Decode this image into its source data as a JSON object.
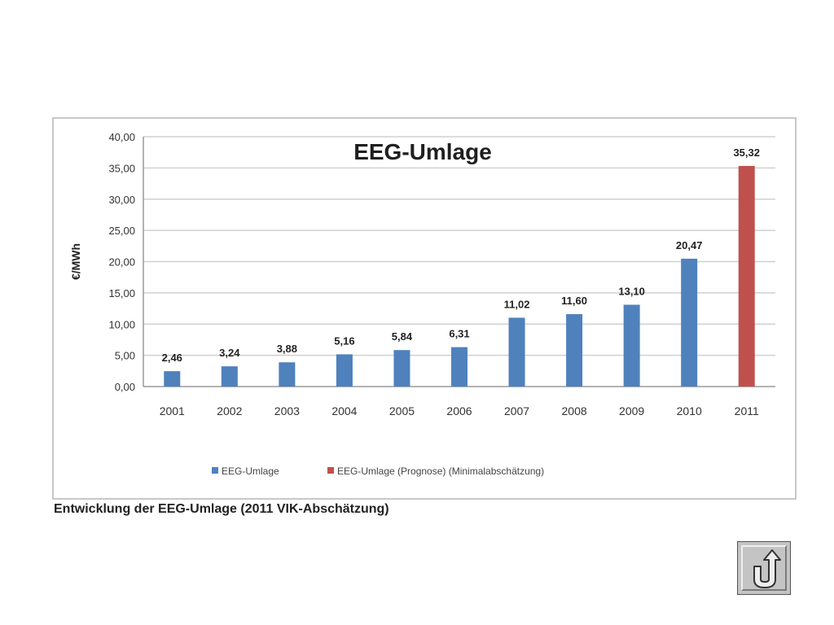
{
  "caption": "Entwicklung der EEG-Umlage (2011 VIK-Abschätzung)",
  "back_button_icon": "u-turn-back-icon",
  "chart_data": {
    "type": "bar",
    "title": "EEG-Umlage",
    "ylabel": "€/MWh",
    "xlabel": "",
    "ylim": [
      0,
      40
    ],
    "yticks": [
      "0,00",
      "5,00",
      "10,00",
      "15,00",
      "20,00",
      "25,00",
      "30,00",
      "35,00",
      "40,00"
    ],
    "categories": [
      "2001",
      "2002",
      "2003",
      "2004",
      "2005",
      "2006",
      "2007",
      "2008",
      "2009",
      "2010",
      "2011"
    ],
    "series": [
      {
        "name": "EEG-Umlage",
        "color": "#4f81bd",
        "values": [
          2.46,
          3.24,
          3.88,
          5.16,
          5.84,
          6.31,
          11.02,
          11.6,
          13.1,
          20.47,
          null
        ],
        "labels": [
          "2,46",
          "3,24",
          "3,88",
          "5,16",
          "5,84",
          "6,31",
          "11,02",
          "11,60",
          "13,10",
          "20,47",
          ""
        ]
      },
      {
        "name": "EEG-Umlage (Prognose) (Minimalabschätzung)",
        "color": "#c0504d",
        "values": [
          null,
          null,
          null,
          null,
          null,
          null,
          null,
          null,
          null,
          null,
          35.32
        ],
        "labels": [
          "",
          "",
          "",
          "",
          "",
          "",
          "",
          "",
          "",
          "",
          "35,32"
        ]
      }
    ],
    "grid": true,
    "legend": "bottom"
  }
}
